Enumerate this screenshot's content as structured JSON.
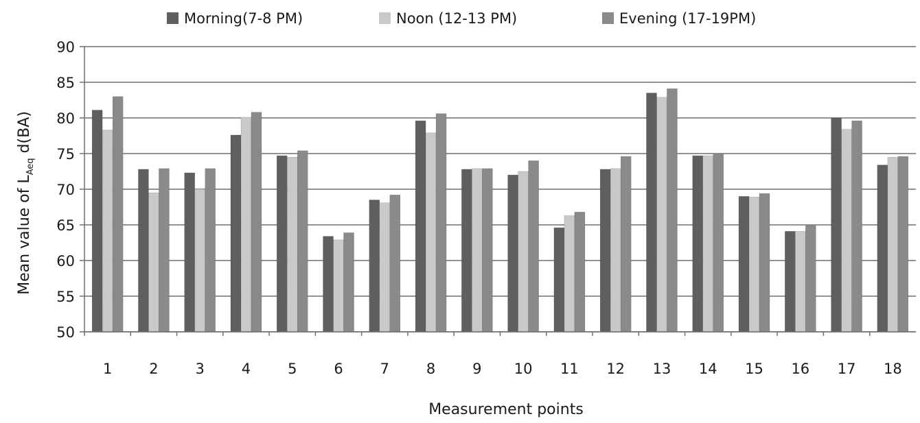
{
  "chart_data": {
    "type": "bar",
    "title": "",
    "xlabel": "Measurement points",
    "ylabel": {
      "prefix": "Mean value of L",
      "subscript": "Aeq",
      "suffix": " d(BA)"
    },
    "ylim": [
      50,
      90
    ],
    "yticks": [
      50,
      55,
      60,
      65,
      70,
      75,
      80,
      85,
      90
    ],
    "grid": true,
    "legend_position": "top",
    "categories": [
      "1",
      "2",
      "3",
      "4",
      "5",
      "6",
      "7",
      "8",
      "9",
      "10",
      "11",
      "12",
      "13",
      "14",
      "15",
      "16",
      "17",
      "18"
    ],
    "series": [
      {
        "name": "Morning(7-8 PM)",
        "color": "#5f5f5f",
        "values": [
          81.1,
          72.8,
          72.3,
          77.6,
          74.7,
          63.4,
          68.5,
          79.6,
          72.8,
          72.0,
          64.6,
          72.8,
          83.5,
          74.7,
          69.0,
          64.1,
          80.0,
          73.4
        ]
      },
      {
        "name": "Noon (12-13 PM)",
        "color": "#c9c9c9",
        "values": [
          78.3,
          69.5,
          70.0,
          80.1,
          74.5,
          62.9,
          68.1,
          77.9,
          72.9,
          72.5,
          66.3,
          72.9,
          82.9,
          74.7,
          68.9,
          64.1,
          78.4,
          74.5
        ]
      },
      {
        "name": "Evening (17-19PM)",
        "color": "#8a8a8a",
        "values": [
          83.0,
          72.9,
          72.9,
          80.8,
          75.4,
          63.9,
          69.2,
          80.6,
          72.9,
          74.0,
          66.8,
          74.6,
          84.1,
          75.0,
          69.4,
          64.9,
          79.6,
          74.6
        ]
      }
    ]
  }
}
